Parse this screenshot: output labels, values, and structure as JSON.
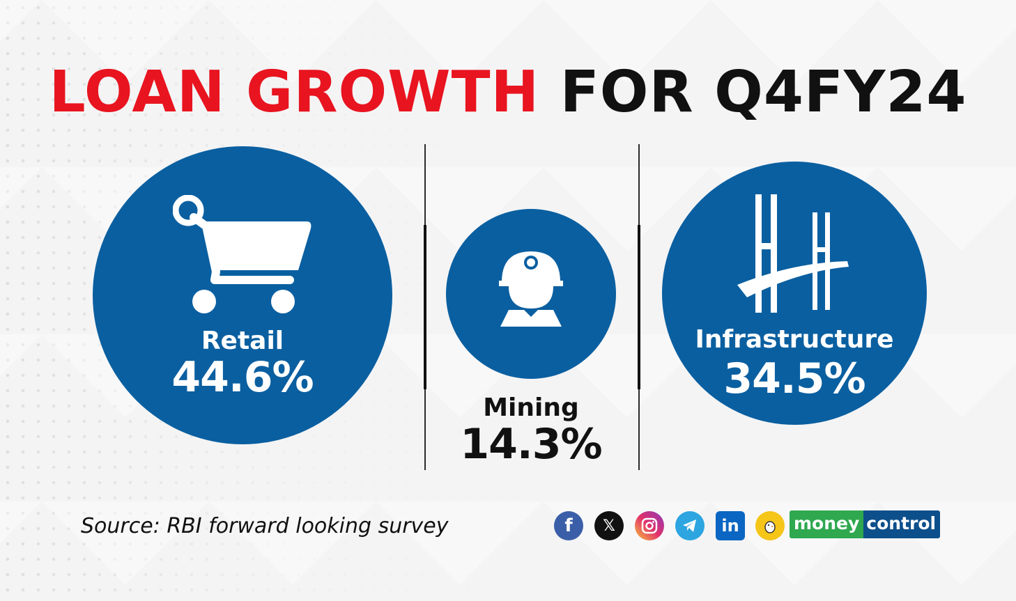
{
  "title": {
    "part1": "LOAN GROWTH",
    "part2": "FOR Q4FY24"
  },
  "colors": {
    "accent_red": "#e8141f",
    "circle_blue": "#0a5fa0",
    "text_dark": "#111111"
  },
  "sectors": [
    {
      "name": "Retail",
      "value": "44.6%",
      "icon": "shopping-cart-icon"
    },
    {
      "name": "Mining",
      "value": "14.3%",
      "icon": "miner-helmet-icon"
    },
    {
      "name": "Infrastructure",
      "value": "34.5%",
      "icon": "bridge-icon"
    }
  ],
  "source": "Source: RBI forward looking survey",
  "social": [
    "facebook-icon",
    "x-icon",
    "instagram-icon",
    "telegram-icon",
    "linkedin-icon",
    "koo-icon"
  ],
  "brand": {
    "part1": "money",
    "part2": "control"
  }
}
